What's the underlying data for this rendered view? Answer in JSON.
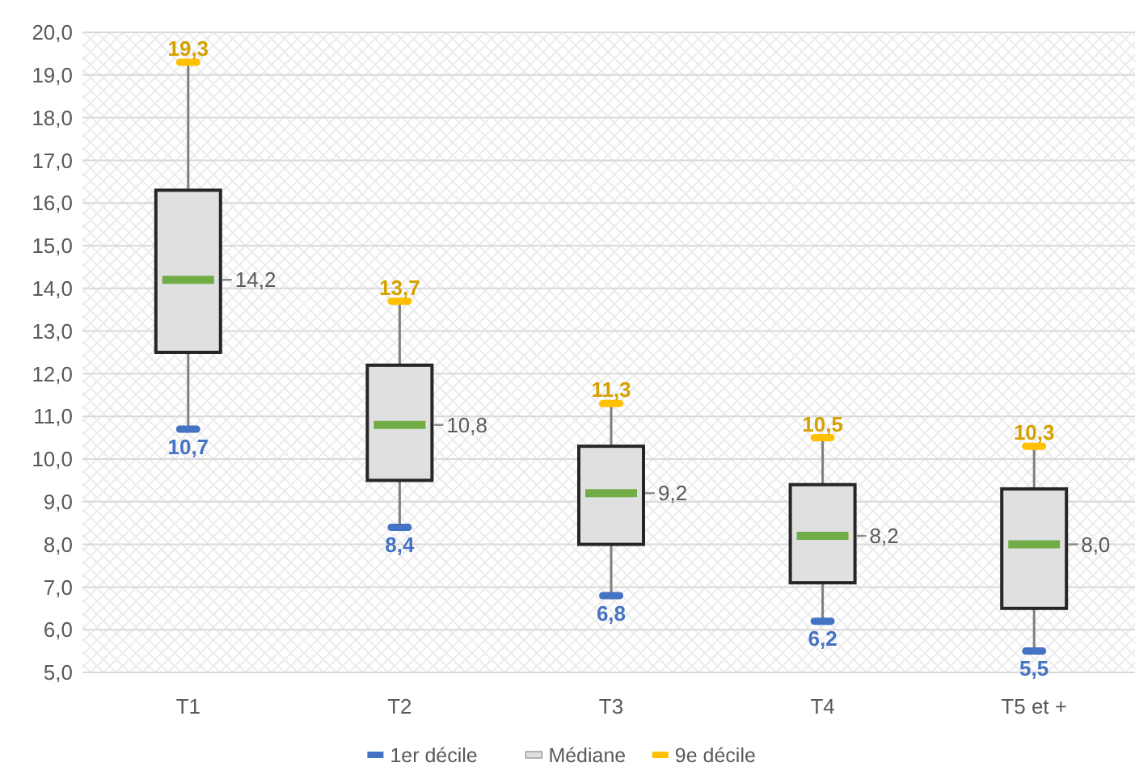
{
  "chart_data": {
    "type": "box",
    "categories": [
      "T1",
      "T2",
      "T3",
      "T4",
      "T5 et +"
    ],
    "ylim": [
      5,
      20
    ],
    "yticks": [
      {
        "value": 5,
        "label": "5,0"
      },
      {
        "value": 6,
        "label": "6,0"
      },
      {
        "value": 7,
        "label": "7,0"
      },
      {
        "value": 8,
        "label": "8,0"
      },
      {
        "value": 9,
        "label": "9,0"
      },
      {
        "value": 10,
        "label": "10,0"
      },
      {
        "value": 11,
        "label": "11,0"
      },
      {
        "value": 12,
        "label": "12,0"
      },
      {
        "value": 13,
        "label": "13,0"
      },
      {
        "value": 14,
        "label": "14,0"
      },
      {
        "value": 15,
        "label": "15,0"
      },
      {
        "value": 16,
        "label": "16,0"
      },
      {
        "value": 17,
        "label": "17,0"
      },
      {
        "value": 18,
        "label": "18,0"
      },
      {
        "value": 19,
        "label": "19,0"
      },
      {
        "value": 20,
        "label": "20,0"
      }
    ],
    "grid": "y",
    "legend": "bottom",
    "series": [
      {
        "name": "1er décile",
        "type": "scatter",
        "color": "#4472c4",
        "values": [
          10.7,
          8.4,
          6.8,
          6.2,
          5.5
        ],
        "value_labels": [
          "10,7",
          "8,4",
          "6,8",
          "6,2",
          "5,5"
        ]
      },
      {
        "name": "Médiane",
        "color": "#e0e0e0",
        "boxes": [
          {
            "low": 10.7,
            "q1": 12.5,
            "median": 14.2,
            "q3": 16.3,
            "high": 19.3
          },
          {
            "low": 8.4,
            "q1": 9.5,
            "median": 10.8,
            "q3": 12.2,
            "high": 13.7
          },
          {
            "low": 6.8,
            "q1": 8.0,
            "median": 9.2,
            "q3": 10.3,
            "high": 11.3
          },
          {
            "low": 6.2,
            "q1": 7.1,
            "median": 8.2,
            "q3": 9.4,
            "high": 10.5
          },
          {
            "low": 5.5,
            "q1": 6.5,
            "median": 8.0,
            "q3": 9.3,
            "high": 10.3
          }
        ],
        "value_labels": [
          "14,2",
          "10,8",
          "9,2",
          "8,2",
          "8,0"
        ]
      },
      {
        "name": "9e décile",
        "type": "scatter",
        "color": "#ffc000",
        "values": [
          19.3,
          13.7,
          11.3,
          10.5,
          10.3
        ],
        "value_labels": [
          "19,3",
          "13,7",
          "11,3",
          "10,5",
          "10,3"
        ]
      }
    ]
  }
}
